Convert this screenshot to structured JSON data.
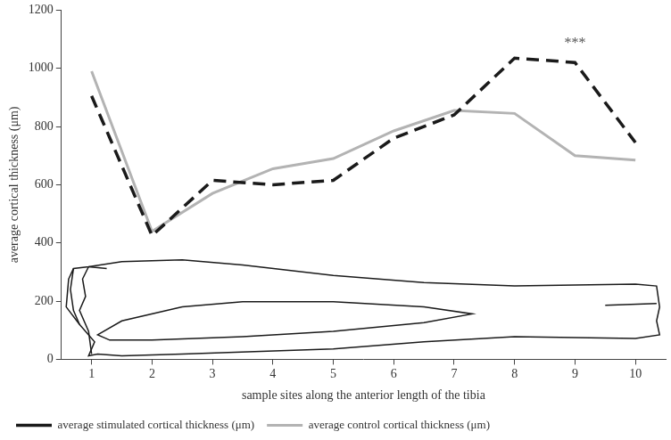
{
  "chart_data": {
    "type": "line",
    "x_label": "sample sites along the anterior length of the tibia",
    "y_label": "average cortical thickness (μm)",
    "categories": [
      "1",
      "2",
      "3",
      "4",
      "5",
      "6",
      "7",
      "8",
      "9",
      "10"
    ],
    "series": [
      {
        "name": "average stimulated cortical thickness (μm)",
        "color": "#1a1a1a",
        "line_style": "dashed",
        "values": [
          905,
          425,
          615,
          600,
          615,
          760,
          840,
          1035,
          1020,
          745
        ]
      },
      {
        "name": "average control cortical thickness (μm)",
        "color": "#b3b3b3",
        "line_style": "solid",
        "values": [
          990,
          440,
          570,
          655,
          690,
          785,
          855,
          845,
          700,
          685
        ]
      }
    ],
    "annotations": [
      {
        "text": "***",
        "x": "9",
        "y": 1085
      }
    ],
    "ylim": [
      0,
      1200
    ],
    "yticks": [
      0,
      200,
      400,
      600,
      800,
      1000,
      1200
    ],
    "grid": false,
    "legend": "bottom"
  }
}
